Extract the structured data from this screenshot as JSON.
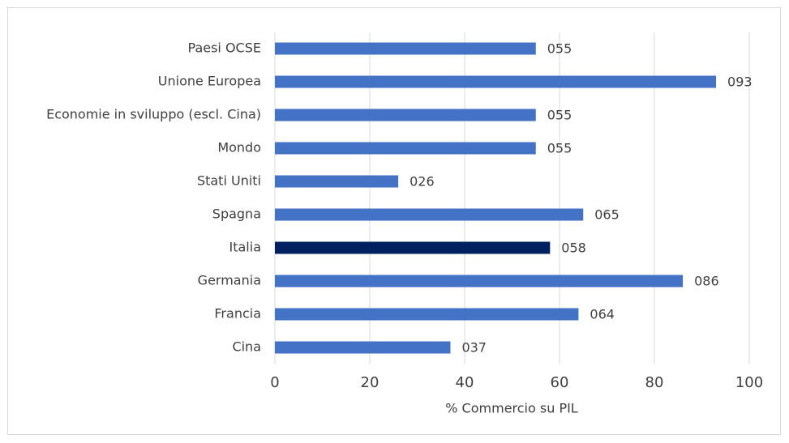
{
  "chart_data": {
    "type": "bar",
    "orientation": "horizontal",
    "categories": [
      "Paesi OCSE",
      "Unione Europea",
      "Economie in sviluppo (escl. Cina)",
      "Mondo",
      "Stati Uniti",
      "Spagna",
      "Italia",
      "Germania",
      "Francia",
      "Cina"
    ],
    "values": [
      55,
      93,
      55,
      55,
      26,
      65,
      58,
      86,
      64,
      37
    ],
    "value_labels": [
      "055",
      "093",
      "055",
      "055",
      "026",
      "065",
      "058",
      "086",
      "064",
      "037"
    ],
    "colors": [
      "#4472c4",
      "#4472c4",
      "#4472c4",
      "#4472c4",
      "#4472c4",
      "#4472c4",
      "#002060",
      "#4472c4",
      "#4472c4",
      "#4472c4"
    ],
    "xlabel": "% Commercio su PIL",
    "xlim": [
      0,
      100
    ],
    "xticks": [
      0,
      20,
      40,
      60,
      80,
      100
    ],
    "grid": true
  }
}
